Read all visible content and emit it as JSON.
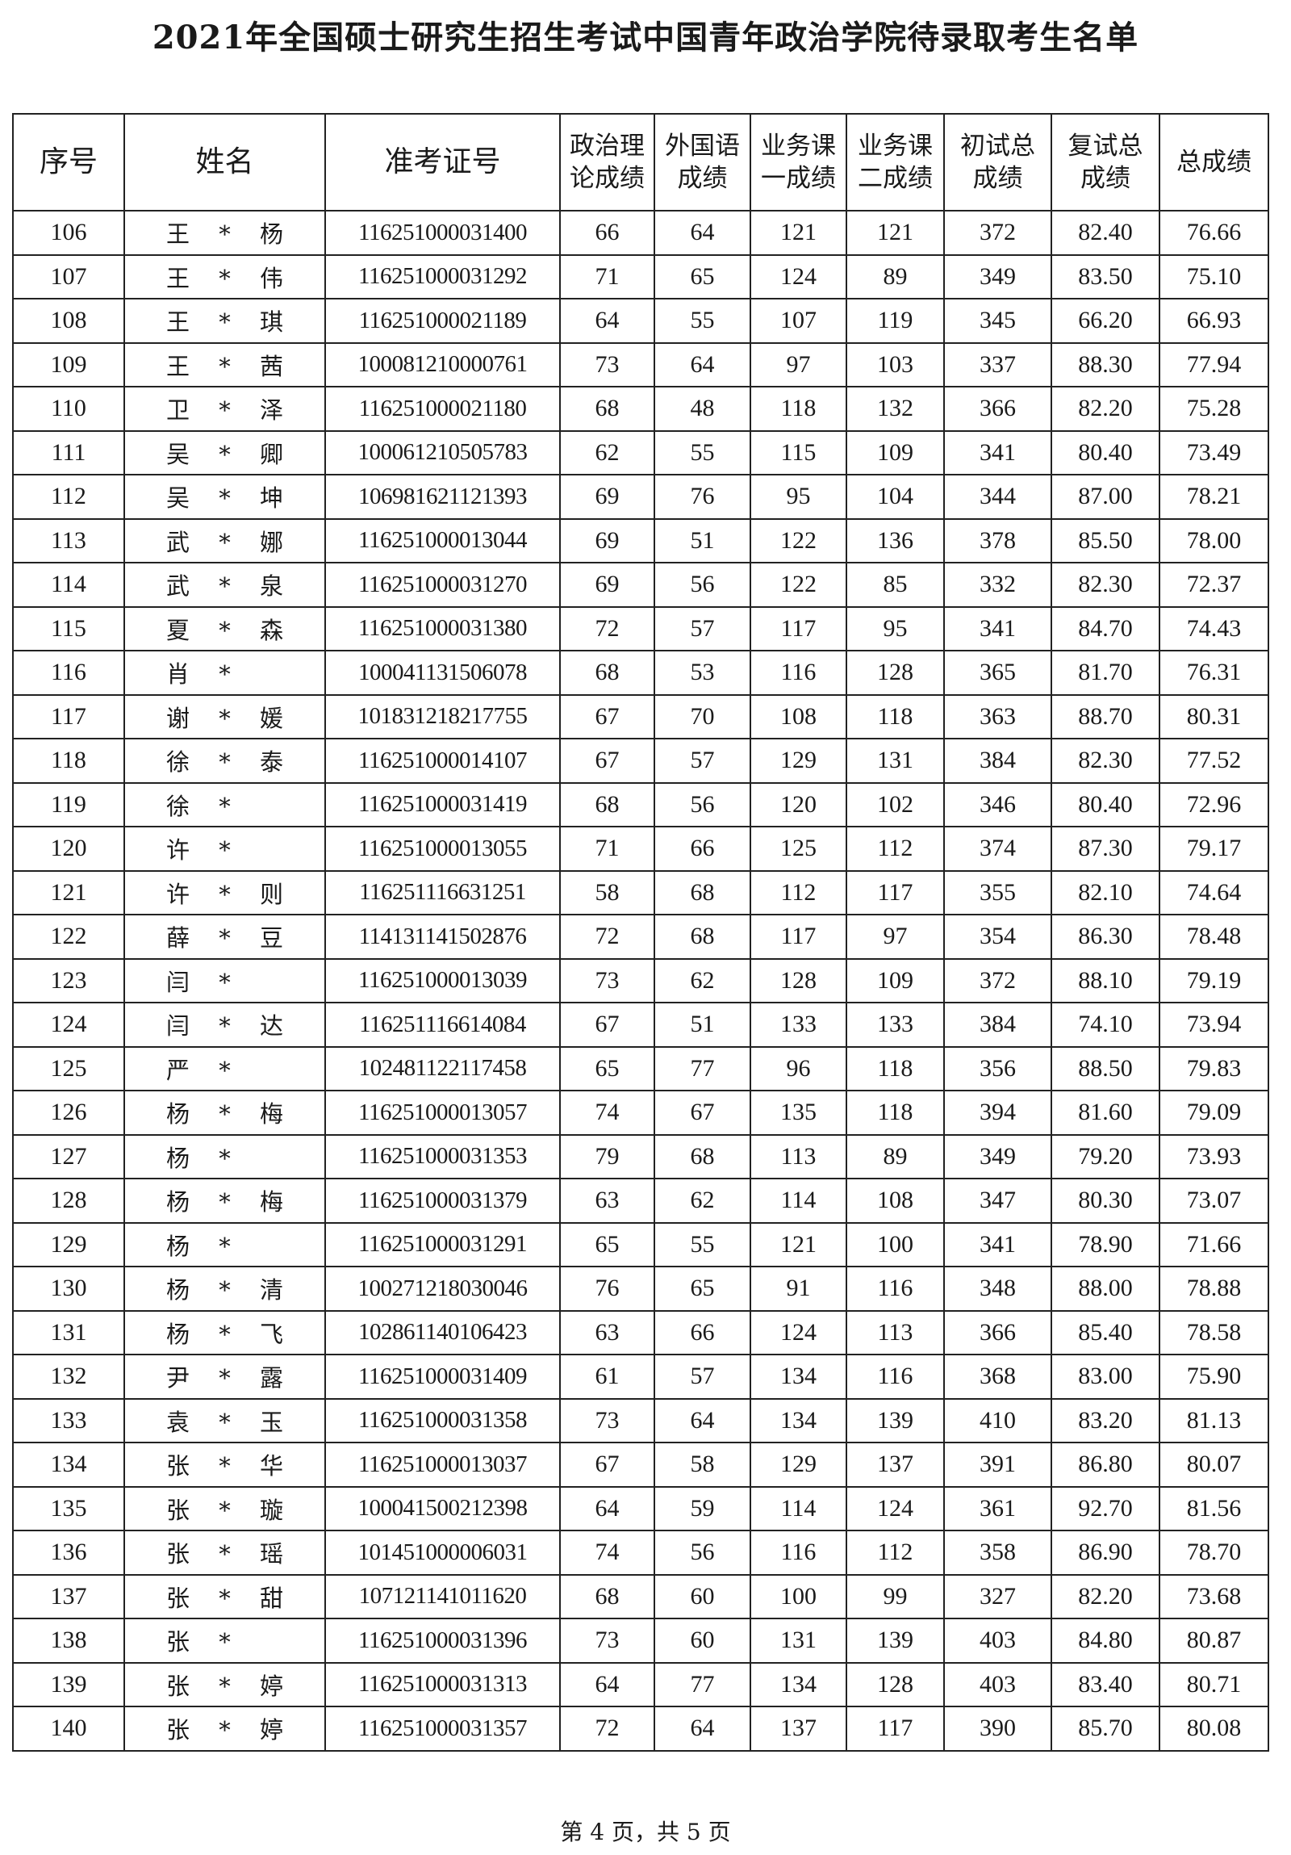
{
  "title": "2021年全国硕士研究生招生考试中国青年政治学院待录取考生名单",
  "headers": [
    "序号",
    "姓名",
    "准考证号",
    "政治理论成绩",
    "外国语成绩",
    "业务课一成绩",
    "业务课二成绩",
    "初试总成绩",
    "复试总成绩",
    "总成绩"
  ],
  "header_lines": [
    [
      "序号"
    ],
    [
      "姓名"
    ],
    [
      "准考证号"
    ],
    [
      "政治理",
      "论成绩"
    ],
    [
      "外国语",
      "成绩"
    ],
    [
      "业务课",
      "一成绩"
    ],
    [
      "业务课",
      "二成绩"
    ],
    [
      "初试总",
      "成绩"
    ],
    [
      "复试总",
      "成绩"
    ],
    [
      "总成绩"
    ]
  ],
  "rows": [
    [
      "106",
      "王 * 杨",
      "116251000031400",
      "66",
      "64",
      "121",
      "121",
      "372",
      "82.40",
      "76.66"
    ],
    [
      "107",
      "王 * 伟",
      "116251000031292",
      "71",
      "65",
      "124",
      "89",
      "349",
      "83.50",
      "75.10"
    ],
    [
      "108",
      "王 * 琪",
      "116251000021189",
      "64",
      "55",
      "107",
      "119",
      "345",
      "66.20",
      "66.93"
    ],
    [
      "109",
      "王 * 茜",
      "100081210000761",
      "73",
      "64",
      "97",
      "103",
      "337",
      "88.30",
      "77.94"
    ],
    [
      "110",
      "卫 * 泽",
      "116251000021180",
      "68",
      "48",
      "118",
      "132",
      "366",
      "82.20",
      "75.28"
    ],
    [
      "111",
      "吴 * 卿",
      "100061210505783",
      "62",
      "55",
      "115",
      "109",
      "341",
      "80.40",
      "73.49"
    ],
    [
      "112",
      "吴 * 坤",
      "106981621121393",
      "69",
      "76",
      "95",
      "104",
      "344",
      "87.00",
      "78.21"
    ],
    [
      "113",
      "武 * 娜",
      "116251000013044",
      "69",
      "51",
      "122",
      "136",
      "378",
      "85.50",
      "78.00"
    ],
    [
      "114",
      "武 * 泉",
      "116251000031270",
      "69",
      "56",
      "122",
      "85",
      "332",
      "82.30",
      "72.37"
    ],
    [
      "115",
      "夏 * 森",
      "116251000031380",
      "72",
      "57",
      "117",
      "95",
      "341",
      "84.70",
      "74.43"
    ],
    [
      "116",
      "肖 *",
      "100041131506078",
      "68",
      "53",
      "116",
      "128",
      "365",
      "81.70",
      "76.31"
    ],
    [
      "117",
      "谢 * 媛",
      "101831218217755",
      "67",
      "70",
      "108",
      "118",
      "363",
      "88.70",
      "80.31"
    ],
    [
      "118",
      "徐 * 泰",
      "116251000014107",
      "67",
      "57",
      "129",
      "131",
      "384",
      "82.30",
      "77.52"
    ],
    [
      "119",
      "徐 *",
      "116251000031419",
      "68",
      "56",
      "120",
      "102",
      "346",
      "80.40",
      "72.96"
    ],
    [
      "120",
      "许 *",
      "116251000013055",
      "71",
      "66",
      "125",
      "112",
      "374",
      "87.30",
      "79.17"
    ],
    [
      "121",
      "许 * 则",
      "116251116631251",
      "58",
      "68",
      "112",
      "117",
      "355",
      "82.10",
      "74.64"
    ],
    [
      "122",
      "薛 * 豆",
      "114131141502876",
      "72",
      "68",
      "117",
      "97",
      "354",
      "86.30",
      "78.48"
    ],
    [
      "123",
      "闫 *",
      "116251000013039",
      "73",
      "62",
      "128",
      "109",
      "372",
      "88.10",
      "79.19"
    ],
    [
      "124",
      "闫 * 达",
      "116251116614084",
      "67",
      "51",
      "133",
      "133",
      "384",
      "74.10",
      "73.94"
    ],
    [
      "125",
      "严 *",
      "102481122117458",
      "65",
      "77",
      "96",
      "118",
      "356",
      "88.50",
      "79.83"
    ],
    [
      "126",
      "杨 * 梅",
      "116251000013057",
      "74",
      "67",
      "135",
      "118",
      "394",
      "81.60",
      "79.09"
    ],
    [
      "127",
      "杨 *",
      "116251000031353",
      "79",
      "68",
      "113",
      "89",
      "349",
      "79.20",
      "73.93"
    ],
    [
      "128",
      "杨 * 梅",
      "116251000031379",
      "63",
      "62",
      "114",
      "108",
      "347",
      "80.30",
      "73.07"
    ],
    [
      "129",
      "杨 *",
      "116251000031291",
      "65",
      "55",
      "121",
      "100",
      "341",
      "78.90",
      "71.66"
    ],
    [
      "130",
      "杨 * 清",
      "100271218030046",
      "76",
      "65",
      "91",
      "116",
      "348",
      "88.00",
      "78.88"
    ],
    [
      "131",
      "杨 * 飞",
      "102861140106423",
      "63",
      "66",
      "124",
      "113",
      "366",
      "85.40",
      "78.58"
    ],
    [
      "132",
      "尹 * 露",
      "116251000031409",
      "61",
      "57",
      "134",
      "116",
      "368",
      "83.00",
      "75.90"
    ],
    [
      "133",
      "袁 * 玉",
      "116251000031358",
      "73",
      "64",
      "134",
      "139",
      "410",
      "83.20",
      "81.13"
    ],
    [
      "134",
      "张 * 华",
      "116251000013037",
      "67",
      "58",
      "129",
      "137",
      "391",
      "86.80",
      "80.07"
    ],
    [
      "135",
      "张 * 璇",
      "100041500212398",
      "64",
      "59",
      "114",
      "124",
      "361",
      "92.70",
      "81.56"
    ],
    [
      "136",
      "张 * 瑶",
      "101451000006031",
      "74",
      "56",
      "116",
      "112",
      "358",
      "86.90",
      "78.70"
    ],
    [
      "137",
      "张 * 甜",
      "107121141011620",
      "68",
      "60",
      "100",
      "99",
      "327",
      "82.20",
      "73.68"
    ],
    [
      "138",
      "张 *",
      "116251000031396",
      "73",
      "60",
      "131",
      "139",
      "403",
      "84.80",
      "80.87"
    ],
    [
      "139",
      "张 * 婷",
      "116251000031313",
      "64",
      "77",
      "134",
      "128",
      "403",
      "83.40",
      "80.71"
    ],
    [
      "140",
      "张 * 婷",
      "116251000031357",
      "72",
      "64",
      "137",
      "117",
      "390",
      "85.70",
      "80.08"
    ]
  ],
  "footer": "第 4 页，共 5 页"
}
